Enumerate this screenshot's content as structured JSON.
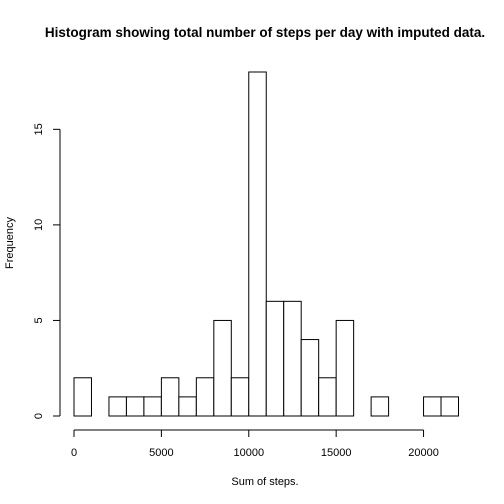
{
  "chart_data": {
    "type": "bar",
    "title": "Histogram showing total number of steps per day with imputed data.",
    "xlabel": "Sum of steps.",
    "ylabel": "Frequency",
    "bin_width": 1000,
    "bins_start": [
      0,
      1000,
      2000,
      3000,
      4000,
      5000,
      6000,
      7000,
      8000,
      9000,
      10000,
      11000,
      12000,
      13000,
      14000,
      15000,
      16000,
      17000,
      18000,
      19000,
      20000,
      21000
    ],
    "values": [
      2,
      0,
      1,
      1,
      1,
      2,
      1,
      2,
      5,
      2,
      18,
      6,
      6,
      4,
      2,
      5,
      0,
      1,
      0,
      0,
      1,
      1
    ],
    "xlim": [
      0,
      22000
    ],
    "ylim": [
      0,
      18
    ],
    "x_ticks": [
      0,
      5000,
      10000,
      15000,
      20000
    ],
    "y_ticks": [
      0,
      5,
      10,
      15
    ],
    "grid": false
  }
}
